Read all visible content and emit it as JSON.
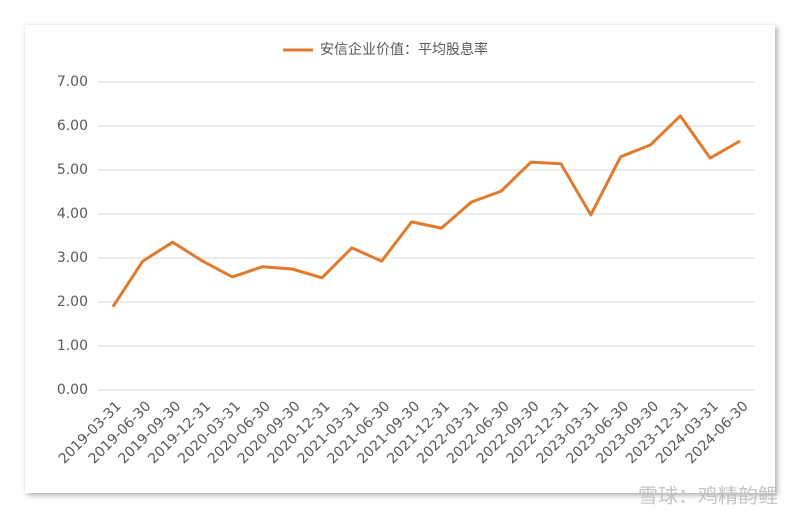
{
  "chart_data": {
    "type": "line",
    "series": [
      {
        "name": "安信企业价值：平均股息率",
        "color": "#e07b2e",
        "values": [
          1.89,
          2.93,
          3.36,
          2.93,
          2.57,
          2.8,
          2.75,
          2.55,
          3.23,
          2.93,
          3.82,
          3.68,
          4.27,
          4.52,
          5.18,
          5.14,
          3.98,
          5.3,
          5.57,
          6.23,
          5.27,
          5.66
        ]
      }
    ],
    "categories": [
      "2019-03-31",
      "2019-06-30",
      "2019-09-30",
      "2019-12-31",
      "2020-03-31",
      "2020-06-30",
      "2020-09-30",
      "2020-12-31",
      "2021-03-31",
      "2021-06-30",
      "2021-09-30",
      "2021-12-31",
      "2022-03-31",
      "2022-06-30",
      "2022-09-30",
      "2022-12-31",
      "2023-03-31",
      "2023-06-30",
      "2023-09-30",
      "2023-12-31",
      "2024-03-31",
      "2024-06-30"
    ],
    "ylim": [
      0,
      7
    ],
    "yticks": [
      {
        "value": 0,
        "label": "0.00"
      },
      {
        "value": 1,
        "label": "1.00"
      },
      {
        "value": 2,
        "label": "2.00"
      },
      {
        "value": 3,
        "label": "3.00"
      },
      {
        "value": 4,
        "label": "4.00"
      },
      {
        "value": 5,
        "label": "5.00"
      },
      {
        "value": 6,
        "label": "6.00"
      },
      {
        "value": 7,
        "label": "7.00"
      }
    ],
    "grid": true,
    "legend": "top",
    "watermark": "雪球：鸡精韵鲤"
  }
}
